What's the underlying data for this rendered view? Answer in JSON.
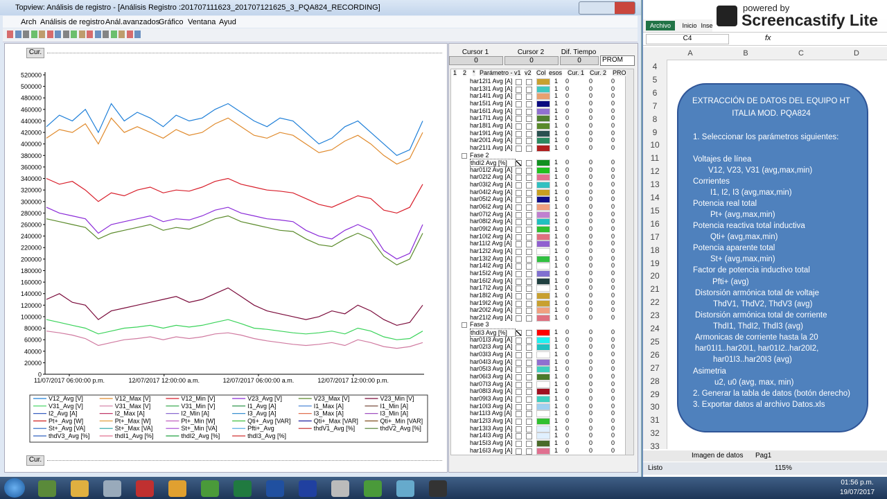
{
  "window": {
    "title": "Topview: Análisis de registro - [Análisis Registro :201707111623_201707121625_3_PQA824_RECORDING]",
    "menu": [
      "Arch",
      "Análisis de registro",
      "Anál.avanzados",
      "Gráfico",
      "Ventana",
      "Ayud"
    ],
    "cur_top": "Cur.",
    "cur_bottom": "Cur."
  },
  "chart_data": {
    "type": "line",
    "ylim": [
      0,
      520000
    ],
    "yticks": [
      520000,
      500000,
      480000,
      460000,
      440000,
      420000,
      400000,
      380000,
      360000,
      340000,
      320000,
      300000,
      280000,
      260000,
      240000,
      220000,
      200000,
      180000,
      160000,
      140000,
      120000,
      100000,
      80000,
      60000,
      40000,
      20000,
      0
    ],
    "xtick_labels": [
      "11/07/2017 06:00:00 p.m.",
      "12/07/2017 12:00:00 a.m.",
      "12/07/2017 06:00:00 a.m.",
      "12/07/2017 12:00:00 p.m."
    ],
    "series": [
      {
        "name": "V12_Avg [V]",
        "color": "#1e7fd8",
        "values": [
          430000,
          450000,
          440000,
          460000,
          420000,
          470000,
          440000,
          455000,
          445000,
          430000,
          450000,
          440000,
          445000,
          460000,
          470000,
          455000,
          440000,
          430000,
          445000,
          440000,
          420000,
          400000,
          410000,
          430000,
          440000,
          420000,
          400000,
          380000,
          390000,
          440000
        ]
      },
      {
        "name": "V12_Max [V]",
        "color": "#e08a2c",
        "values": [
          410000,
          425000,
          420000,
          435000,
          400000,
          445000,
          420000,
          430000,
          420000,
          410000,
          425000,
          415000,
          420000,
          435000,
          445000,
          430000,
          415000,
          410000,
          420000,
          415000,
          400000,
          385000,
          390000,
          405000,
          415000,
          400000,
          380000,
          365000,
          375000,
          420000
        ]
      },
      {
        "name": "V12_Min [V]",
        "color": "#d81e2a",
        "values": [
          340000,
          330000,
          335000,
          320000,
          300000,
          315000,
          310000,
          320000,
          325000,
          315000,
          320000,
          318000,
          325000,
          335000,
          340000,
          330000,
          325000,
          320000,
          318000,
          315000,
          305000,
          295000,
          290000,
          300000,
          310000,
          305000,
          285000,
          280000,
          290000,
          330000
        ]
      },
      {
        "name": "V23_Avg [V]",
        "color": "#8a2ad8",
        "values": [
          290000,
          280000,
          275000,
          270000,
          245000,
          260000,
          265000,
          270000,
          275000,
          265000,
          270000,
          268000,
          275000,
          285000,
          290000,
          280000,
          275000,
          270000,
          268000,
          265000,
          250000,
          240000,
          235000,
          250000,
          260000,
          250000,
          215000,
          200000,
          210000,
          260000
        ]
      },
      {
        "name": "V23_Max [V]",
        "color": "#5a8a2a",
        "values": [
          270000,
          265000,
          260000,
          255000,
          235000,
          245000,
          250000,
          255000,
          260000,
          250000,
          255000,
          252000,
          260000,
          270000,
          275000,
          265000,
          260000,
          255000,
          250000,
          248000,
          235000,
          225000,
          222000,
          235000,
          245000,
          235000,
          205000,
          190000,
          200000,
          245000
        ]
      },
      {
        "name": "V23_Min [V]",
        "color": "#7a0a3a",
        "values": [
          130000,
          140000,
          125000,
          120000,
          95000,
          110000,
          115000,
          120000,
          125000,
          130000,
          135000,
          125000,
          130000,
          140000,
          150000,
          135000,
          120000,
          110000,
          105000,
          100000,
          95000,
          100000,
          110000,
          105000,
          120000,
          110000,
          95000,
          85000,
          90000,
          120000
        ]
      },
      {
        "name": "V31_Avg [V]",
        "color": "#3ad35a",
        "values": [
          95000,
          90000,
          85000,
          80000,
          70000,
          75000,
          80000,
          82000,
          85000,
          80000,
          85000,
          82000,
          85000,
          90000,
          95000,
          88000,
          80000,
          78000,
          75000,
          72000,
          70000,
          72000,
          75000,
          70000,
          80000,
          75000,
          65000,
          60000,
          62000,
          75000
        ]
      },
      {
        "name": "V31_Max [V]",
        "color": "#d07aa0",
        "values": [
          75000,
          72000,
          68000,
          62000,
          50000,
          55000,
          60000,
          62000,
          65000,
          60000,
          65000,
          62000,
          65000,
          70000,
          72000,
          68000,
          62000,
          58000,
          55000,
          52000,
          50000,
          52000,
          55000,
          50000,
          60000,
          55000,
          48000,
          45000,
          48000,
          55000
        ]
      },
      {
        "name": "V31_Min [V]",
        "color": "#2aa040"
      },
      {
        "name": "I1_Avg [A]",
        "color": "#1a8a3a"
      },
      {
        "name": "I1_Max [A]",
        "color": "#3a7ad0"
      },
      {
        "name": "I1_Min [A]",
        "color": "#6a3a2a"
      },
      {
        "name": "I2_Avg [A]",
        "color": "#3a60c0"
      },
      {
        "name": "I2_Max [A]",
        "color": "#c03a6a"
      },
      {
        "name": "I2_Min [A]",
        "color": "#8a6ad0"
      },
      {
        "name": "I3_Avg [A]",
        "color": "#3a90d0"
      },
      {
        "name": "I3_Max [A]",
        "color": "#e07050"
      },
      {
        "name": "I3_Min [A]",
        "color": "#a050c0"
      },
      {
        "name": "Pt+_Avg [W]",
        "color": "#d02020"
      },
      {
        "name": "Pt+_Max [W]",
        "color": "#e0a040"
      },
      {
        "name": "Pt+_Min [W]",
        "color": "#c060c0"
      },
      {
        "name": "Qti+_Avg [VAR]",
        "color": "#40c040"
      },
      {
        "name": "Qti+_Max [VAR]",
        "color": "#2020a0"
      },
      {
        "name": "Qti+_Min [VAR]",
        "color": "#805020"
      },
      {
        "name": "St+_Avg [VA]",
        "color": "#2060c0"
      },
      {
        "name": "St+_Max [VA]",
        "color": "#20a0a0"
      },
      {
        "name": "St+_Min [VA]",
        "color": "#a040d0"
      },
      {
        "name": "Pfti+_Avg",
        "color": "#40a0e0"
      },
      {
        "name": "thdV1_Avg [%]",
        "color": "#c02020"
      },
      {
        "name": "thdV2_Avg [%]",
        "color": "#4a7a2a"
      },
      {
        "name": "thdV3_Avg [%]",
        "color": "#3060c0"
      },
      {
        "name": "thdI1_Avg [%]",
        "color": "#e07090"
      },
      {
        "name": "thdI2_Avg [%]",
        "color": "#20a040"
      },
      {
        "name": "thdI3_Avg [%]",
        "color": "#d03030"
      }
    ]
  },
  "cursor_panel": {
    "headers": [
      "Cursor 1",
      "Cursor 2",
      "Dif. Tiempo"
    ],
    "values": [
      0,
      0,
      0
    ],
    "mode": "PROM"
  },
  "param_table": {
    "columns": [
      "1",
      "2",
      "*",
      "Parámetro - v1",
      "v2",
      "Col",
      "esos",
      "Cur. 1",
      "Cur. 2",
      "PRO"
    ],
    "rows": [
      [
        "har12I1 Avg [A]",
        "#c8a030",
        1,
        0,
        0,
        0
      ],
      [
        "har13I1 Avg [A]",
        "#40c8c0",
        1,
        0,
        0,
        0
      ],
      [
        "har14I1 Avg [A]",
        "#e8a070",
        1,
        0,
        0,
        0
      ],
      [
        "har15I1 Avg [A]",
        "#0a0a80",
        1,
        0,
        0,
        0
      ],
      [
        "har16I1 Avg [A]",
        "#9070d0",
        1,
        0,
        0,
        0
      ],
      [
        "har17I1 Avg [A]",
        "#508030",
        1,
        0,
        0,
        0
      ],
      [
        "har18I1 Avg [A]",
        "#5a8a2a",
        1,
        0,
        0,
        0
      ],
      [
        "har19I1 Avg [A]",
        "#2a5050",
        1,
        0,
        0,
        0
      ],
      [
        "har20I1 Avg [A]",
        "#2a8a60",
        1,
        0,
        0,
        0
      ],
      [
        "har21I1 Avg [A]",
        "#b02020",
        1,
        0,
        0,
        0
      ],
      {
        "section": "Fase 2"
      },
      [
        "thdI2 Avg [%]",
        "#109020",
        1,
        0,
        0,
        0,
        true
      ],
      [
        "har01I2 Avg [A]",
        "#20c020",
        1,
        0,
        0,
        0
      ],
      [
        "har02I2 Avg [A]",
        "#e07090",
        1,
        0,
        0,
        0
      ],
      [
        "har03I2 Avg [A]",
        "#30c0c0",
        1,
        0,
        0,
        0
      ],
      [
        "har04I2 Avg [A]",
        "#c8a020",
        1,
        0,
        0,
        0
      ],
      [
        "har05I2 Avg [A]",
        "#10108a",
        1,
        0,
        0,
        0
      ],
      [
        "har06I2 Avg [A]",
        "#f0a080",
        1,
        0,
        0,
        0
      ],
      [
        "har07I2 Avg [A]",
        "#c080d0",
        1,
        0,
        0,
        0
      ],
      [
        "har08I2 Avg [A]",
        "#20c0c0",
        1,
        0,
        0,
        0
      ],
      [
        "har09I2 Avg [A]",
        "#30c030",
        1,
        0,
        0,
        0
      ],
      [
        "har10I2 Avg [A]",
        "#e07080",
        1,
        0,
        0,
        0
      ],
      [
        "har11I2 Avg [A]",
        "#9060d0",
        1,
        0,
        0,
        0
      ],
      [
        "har12I2 Avg [A]",
        "#ffffff",
        1,
        0,
        0,
        0
      ],
      [
        "har13I2 Avg [A]",
        "#30c040",
        1,
        0,
        0,
        0
      ],
      [
        "har14I2 Avg [A]",
        "#ffffff",
        1,
        0,
        0,
        0
      ],
      [
        "har15I2 Avg [A]",
        "#8070d0",
        1,
        0,
        0,
        0
      ],
      [
        "har16I2 Avg [A]",
        "#204040",
        1,
        0,
        0,
        0
      ],
      [
        "har17I2 Avg [A]",
        "#ffffff",
        1,
        0,
        0,
        0
      ],
      [
        "har18I2 Avg [A]",
        "#c8a030",
        1,
        0,
        0,
        0
      ],
      [
        "har19I2 Avg [A]",
        "#c8a030",
        1,
        0,
        0,
        0
      ],
      [
        "har20I2 Avg [A]",
        "#f0a080",
        1,
        0,
        0,
        0
      ],
      [
        "har21I2 Avg [A]",
        "#e07080",
        1,
        0,
        0,
        0
      ],
      {
        "section": "Fase 3"
      },
      [
        "thdI3 Avg [%]",
        "#ff0000",
        1,
        0,
        0,
        0,
        true
      ],
      [
        "har01I3 Avg [A]",
        "#20f0f0",
        1,
        0,
        0,
        0
      ],
      [
        "har02I3 Avg [A]",
        "#20c0c0",
        1,
        0,
        0,
        0
      ],
      [
        "har03I3 Avg [A]",
        "#ffffff",
        1,
        0,
        0,
        0
      ],
      [
        "har04I3 Avg [A]",
        "#9070d0",
        1,
        0,
        0,
        0
      ],
      [
        "har05I3 Avg [A]",
        "#40d0c0",
        1,
        0,
        0,
        0
      ],
      [
        "har06I3 Avg [A]",
        "#4a7a2a",
        1,
        0,
        0,
        0
      ],
      [
        "har07I3 Avg [A]",
        "#ffffff",
        1,
        0,
        0,
        0
      ],
      [
        "har08I3 Avg [A]",
        "#a01020",
        1,
        0,
        0,
        0
      ],
      [
        "har09I3 Avg [A]",
        "#40d0c0",
        1,
        0,
        0,
        0
      ],
      [
        "har10I3 Avg [A]",
        "#a0d0f0",
        1,
        0,
        0,
        0
      ],
      [
        "har11I3 Avg [A]",
        "#ffffff",
        1,
        0,
        0,
        0
      ],
      [
        "har12I3 Avg [A]",
        "#30c030",
        1,
        0,
        0,
        0
      ],
      [
        "har13I3 Avg [A]",
        "#e0f0ff",
        1,
        0,
        0,
        0
      ],
      [
        "har14I3 Avg [A]",
        "#e0f0ff",
        1,
        0,
        0,
        0
      ],
      [
        "har15I3 Avg [A]",
        "#4a6a2a",
        1,
        0,
        0,
        0
      ],
      [
        "har16I3 Avg [A]",
        "#e07090",
        1,
        0,
        0,
        0
      ]
    ]
  },
  "excel": {
    "tabs": [
      "Archivo",
      "Inicio",
      "Inse"
    ],
    "name_box": "C4",
    "fx": "fx",
    "columns": [
      "A",
      "B",
      "C",
      "D"
    ],
    "rows": [
      4,
      5,
      6,
      7,
      8,
      9,
      10,
      11,
      12,
      13,
      14,
      15,
      16,
      17,
      18,
      19,
      20,
      21,
      22,
      23,
      24,
      25,
      26,
      27,
      28,
      29,
      30,
      31,
      32,
      33
    ],
    "box_lines": [
      "EXTRACCIÓN DE DATOS DEL EQUIPO HT",
      "ITALIA MOD. PQA824",
      "1. Seleccionar los parámetros siguientes:",
      "Voltajes de línea",
      "V12, V23, V31 (avg,max,min)",
      "Corrientes",
      "I1, I2, I3 (avg,max,min)",
      "Potencia real  total",
      "Pt+ (avg,max,min)",
      "Potencia reactiva total inductiva",
      "Qti+ (avg,max,min)",
      "Potencia aparente total",
      "St+ (avg,max,min)",
      "Factor de potencia inductivo total",
      "Pfti+ (avg)",
      "Distorsión armónica total de voltaje",
      "ThdV1, ThdV2, ThdV3 (avg)",
      "Distorsión armónica total de corriente",
      "ThdI1, ThdI2, ThdI3 (avg)",
      "Armonicas de corriente hasta la 20",
      "har01I1..har20I1,  har01I2..har20I2,",
      "har01I3..har20I3 (avg)",
      "Asimetria",
      "u2, u0 (avg, max, min)",
      "2. Generar la tabla de datos (botón derecho)",
      "3. Exportar datos al archivo Datos.xls"
    ],
    "sheets": [
      "Imagen de datos",
      "Pag1"
    ],
    "status": "Listo",
    "zoom": "115%"
  },
  "overlay": {
    "powered_by": "powered by",
    "brand": "Screencastify Lite"
  },
  "taskbar": {
    "time": "01:56 p.m.",
    "date": "19/07/2017"
  }
}
